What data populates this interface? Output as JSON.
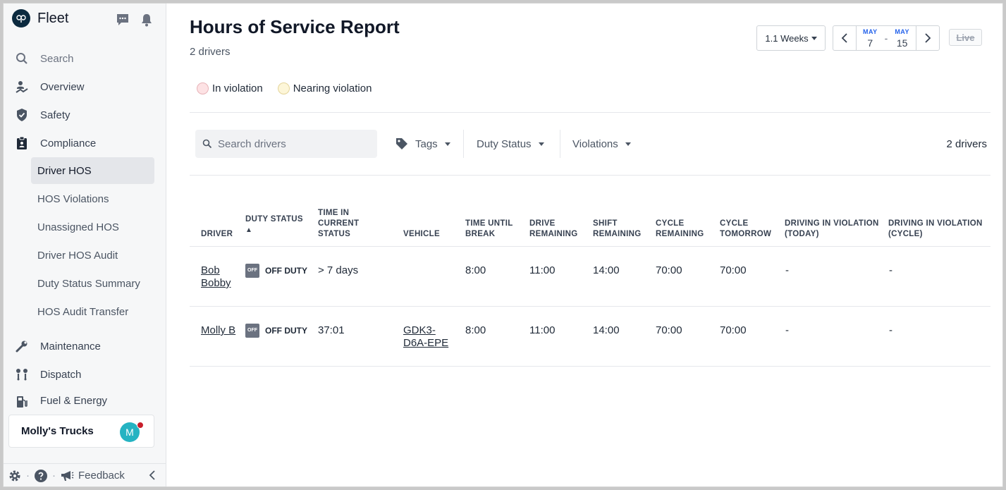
{
  "app": {
    "brand_name": "Fleet"
  },
  "sidebar": {
    "search_label": "Search",
    "items": [
      {
        "label": "Overview"
      },
      {
        "label": "Safety"
      },
      {
        "label": "Compliance"
      },
      {
        "label": "Maintenance"
      },
      {
        "label": "Dispatch"
      },
      {
        "label": "Fuel & Energy"
      }
    ],
    "compliance_sub": [
      {
        "label": "Driver HOS"
      },
      {
        "label": "HOS Violations"
      },
      {
        "label": "Unassigned HOS"
      },
      {
        "label": "Driver HOS Audit"
      },
      {
        "label": "Duty Status Summary"
      },
      {
        "label": "HOS Audit Transfer"
      }
    ],
    "org_name": "Molly's Trucks",
    "avatar_initial": "M",
    "feedback_label": "Feedback"
  },
  "header": {
    "title": "Hours of Service Report",
    "subtitle": "2 drivers",
    "range_label": "1.1 Weeks",
    "start_month": "MAY",
    "start_day": "7",
    "end_month": "MAY",
    "end_day": "15",
    "date_dash": "-",
    "live_label": "Live"
  },
  "legend": {
    "violation_label": "In violation",
    "nearing_label": "Nearing violation",
    "violation_color": "#fde2e4",
    "nearing_color": "#fdf6d8"
  },
  "filters": {
    "search_placeholder": "Search drivers",
    "tags_label": "Tags",
    "duty_status_label": "Duty Status",
    "violations_label": "Violations",
    "count_label": "2 drivers"
  },
  "table": {
    "headers": {
      "driver": "Driver",
      "duty_status": "Duty Status",
      "sort_indicator": "▲",
      "time_in_status": "Time in Current Status",
      "vehicle": "Vehicle",
      "time_until_break": "Time Until Break",
      "drive_remaining": "Drive Remaining",
      "shift_remaining": "Shift Remaining",
      "cycle_remaining": "Cycle Remaining",
      "cycle_tomorrow": "Cycle Tomorrow",
      "driving_violation_today": "Driving in Violation (Today)",
      "driving_violation_cycle": "Driving in Violation (Cycle)"
    },
    "rows": [
      {
        "driver": "Bob Bobby",
        "duty_badge": "OFF",
        "duty_status": "OFF DUTY",
        "time_in_status": "> 7 days",
        "vehicle": "",
        "time_until_break": "8:00",
        "drive_remaining": "11:00",
        "shift_remaining": "14:00",
        "cycle_remaining": "70:00",
        "cycle_tomorrow": "70:00",
        "violation_today": "-",
        "violation_cycle": "-"
      },
      {
        "driver": "Molly B",
        "duty_badge": "OFF",
        "duty_status": "OFF DUTY",
        "time_in_status": "37:01",
        "vehicle": "GDK3-D6A-EPE",
        "time_until_break": "8:00",
        "drive_remaining": "11:00",
        "shift_remaining": "14:00",
        "cycle_remaining": "70:00",
        "cycle_tomorrow": "70:00",
        "violation_today": "-",
        "violation_cycle": "-"
      }
    ]
  }
}
